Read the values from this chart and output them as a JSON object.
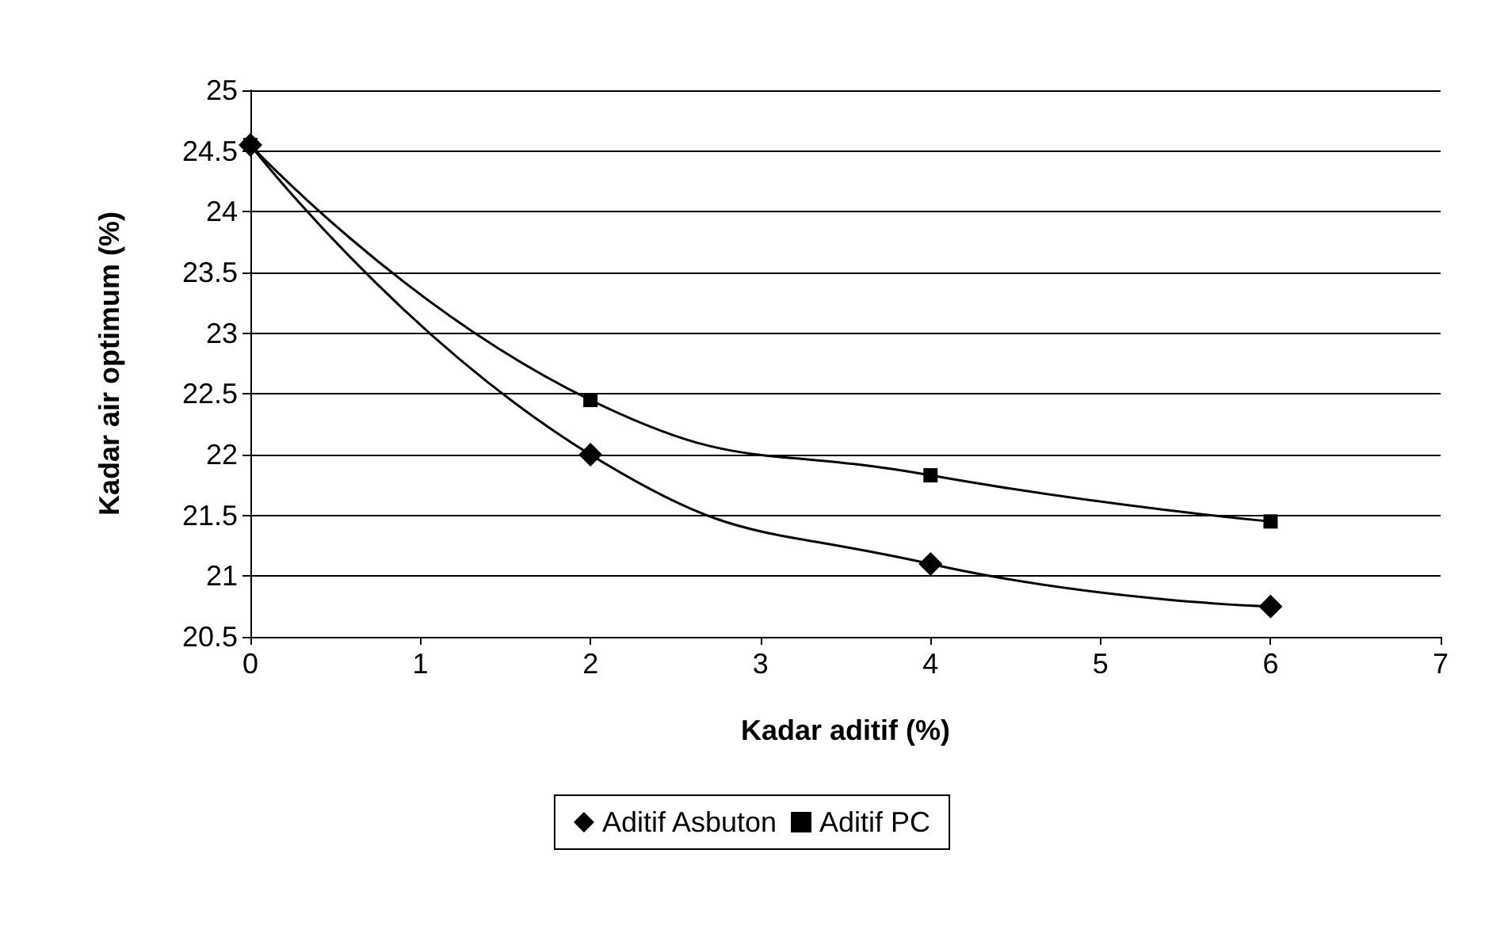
{
  "chart_data": {
    "type": "line",
    "xlabel": "Kadar aditif (%)",
    "ylabel": "Kadar air optimum (%)",
    "x": [
      0,
      2,
      4,
      6
    ],
    "series": [
      {
        "name": "Aditif Asbuton",
        "color": "#000000",
        "marker": "diamond",
        "values": [
          24.55,
          22.0,
          21.1,
          20.75
        ]
      },
      {
        "name": "Aditif PC",
        "color": "#000000",
        "marker": "square",
        "values": [
          24.55,
          22.45,
          21.83,
          21.45
        ]
      }
    ],
    "xlim": [
      0,
      7
    ],
    "xticks": [
      0,
      1,
      2,
      3,
      4,
      5,
      6,
      7
    ],
    "ylim": [
      20.5,
      25
    ],
    "yticks": [
      20.5,
      21,
      21.5,
      22,
      22.5,
      23,
      23.5,
      24,
      24.5,
      25
    ],
    "grid": "y",
    "legend": "bottom",
    "line_style": "solid"
  }
}
